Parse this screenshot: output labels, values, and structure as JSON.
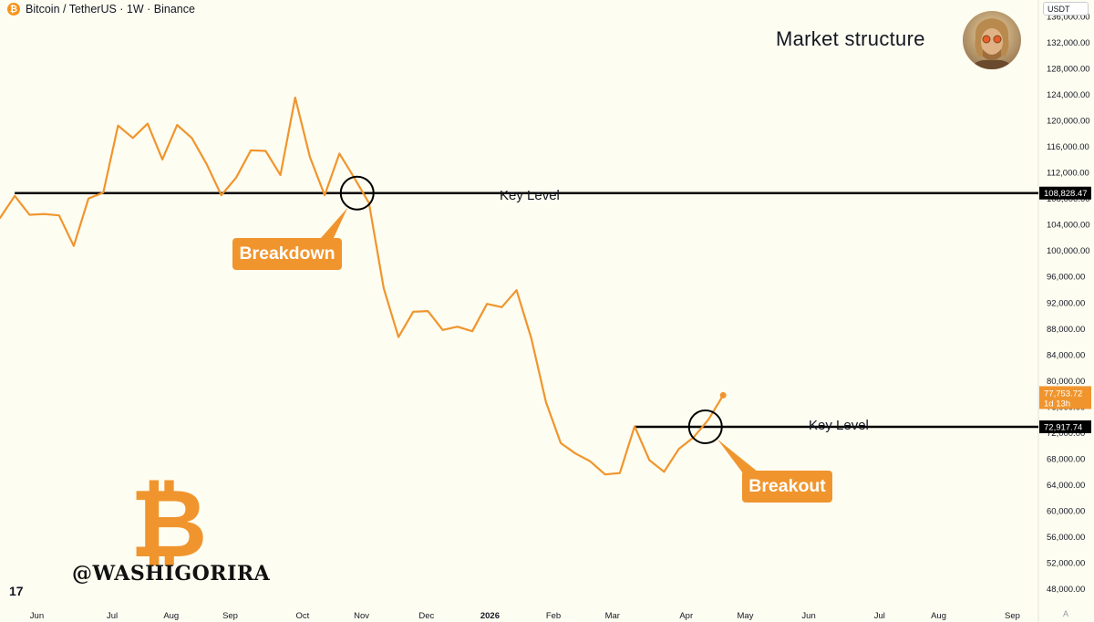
{
  "header": {
    "symbol_icon": "bitcoin-coin-icon",
    "coin_glyph": "₿",
    "symbol_label": "Bitcoin / TetherUS · 1W · Binance"
  },
  "title": "Market structure",
  "currency_selector": "USDT",
  "watermark": "@WASHIGORIRA",
  "logo_glyph": "₿",
  "tv_logo": "17",
  "auto_scale_label": "A",
  "annotations": {
    "key_level_upper": "Key Level",
    "key_level_lower": "Key Level",
    "breakdown": "Breakdown",
    "breakout": "Breakout"
  },
  "colors": {
    "price_line": "#f0952d",
    "level_line": "#000000",
    "background": "#fefdf1",
    "badge": "#f0952d",
    "axis_text": "#131722"
  },
  "chart_data": {
    "type": "line",
    "series": [
      {
        "values": [
          105000,
          108400,
          105500,
          105600,
          105400,
          100700,
          108000,
          108900,
          119200,
          117300,
          119500,
          114000,
          119300,
          117300,
          113300,
          108500,
          111200,
          115400,
          115300,
          111600,
          123500,
          114400,
          108500,
          114900,
          111200,
          107300,
          94200,
          86700,
          90600,
          90700,
          87800,
          88300,
          87600,
          91800,
          91300,
          93900,
          86500,
          76700,
          70400,
          68800,
          67600,
          65600,
          65800,
          73000,
          67800,
          66000,
          69500,
          71300,
          74000,
          77753.72
        ]
      }
    ],
    "x_ticks": [
      {
        "label": "Jun",
        "i": 2.5
      },
      {
        "label": "Jul",
        "i": 7.6
      },
      {
        "label": "Aug",
        "i": 11.6
      },
      {
        "label": "Sep",
        "i": 15.6
      },
      {
        "label": "Oct",
        "i": 20.5
      },
      {
        "label": "Nov",
        "i": 24.5
      },
      {
        "label": "Dec",
        "i": 28.9
      },
      {
        "label": "2026",
        "i": 33.2
      },
      {
        "label": "Feb",
        "i": 37.5
      },
      {
        "label": "Mar",
        "i": 41.5
      },
      {
        "label": "Apr",
        "i": 46.5
      },
      {
        "label": "May",
        "i": 50.5
      },
      {
        "label": "Jun",
        "i": 54.8
      },
      {
        "label": "Jul",
        "i": 59.6
      },
      {
        "label": "Aug",
        "i": 63.6
      },
      {
        "label": "Sep",
        "i": 68.6
      }
    ],
    "y_ticks": [
      48000,
      52000,
      56000,
      60000,
      64000,
      68000,
      72000,
      76000,
      80000,
      84000,
      88000,
      92000,
      96000,
      100000,
      104000,
      108000,
      112000,
      116000,
      120000,
      124000,
      128000,
      132000,
      136000
    ],
    "y_tick_labels": [
      "48,000.00",
      "52,000.00",
      "56,000.00",
      "60,000.00",
      "64,000.00",
      "68,000.00",
      "72,000.00",
      "76,000.00",
      "80,000.00",
      "84,000.00",
      "88,000.00",
      "92,000.00",
      "96,000.00",
      "100,000.00",
      "104,000.00",
      "108,000.00",
      "112,000.00",
      "116,000.00",
      "120,000.00",
      "124,000.00",
      "128,000.00",
      "132,000.00",
      "136,000.00"
    ],
    "ylim": [
      46000,
      138500
    ],
    "xlim": [
      0,
      70.3
    ],
    "levels": [
      {
        "value": 108828.47,
        "label": "108,828.47",
        "start_i": 1
      },
      {
        "value": 72917.74,
        "label": "72,917.74",
        "start_i": 43
      }
    ],
    "last_price": {
      "value": 77753.72,
      "label": "77,753.72",
      "countdown": "1d 13h"
    },
    "markers": [
      {
        "label": "Breakdown",
        "i": 24.2,
        "value": 108828.47
      },
      {
        "label": "Breakout",
        "i": 47.8,
        "value": 72917.74
      }
    ]
  }
}
